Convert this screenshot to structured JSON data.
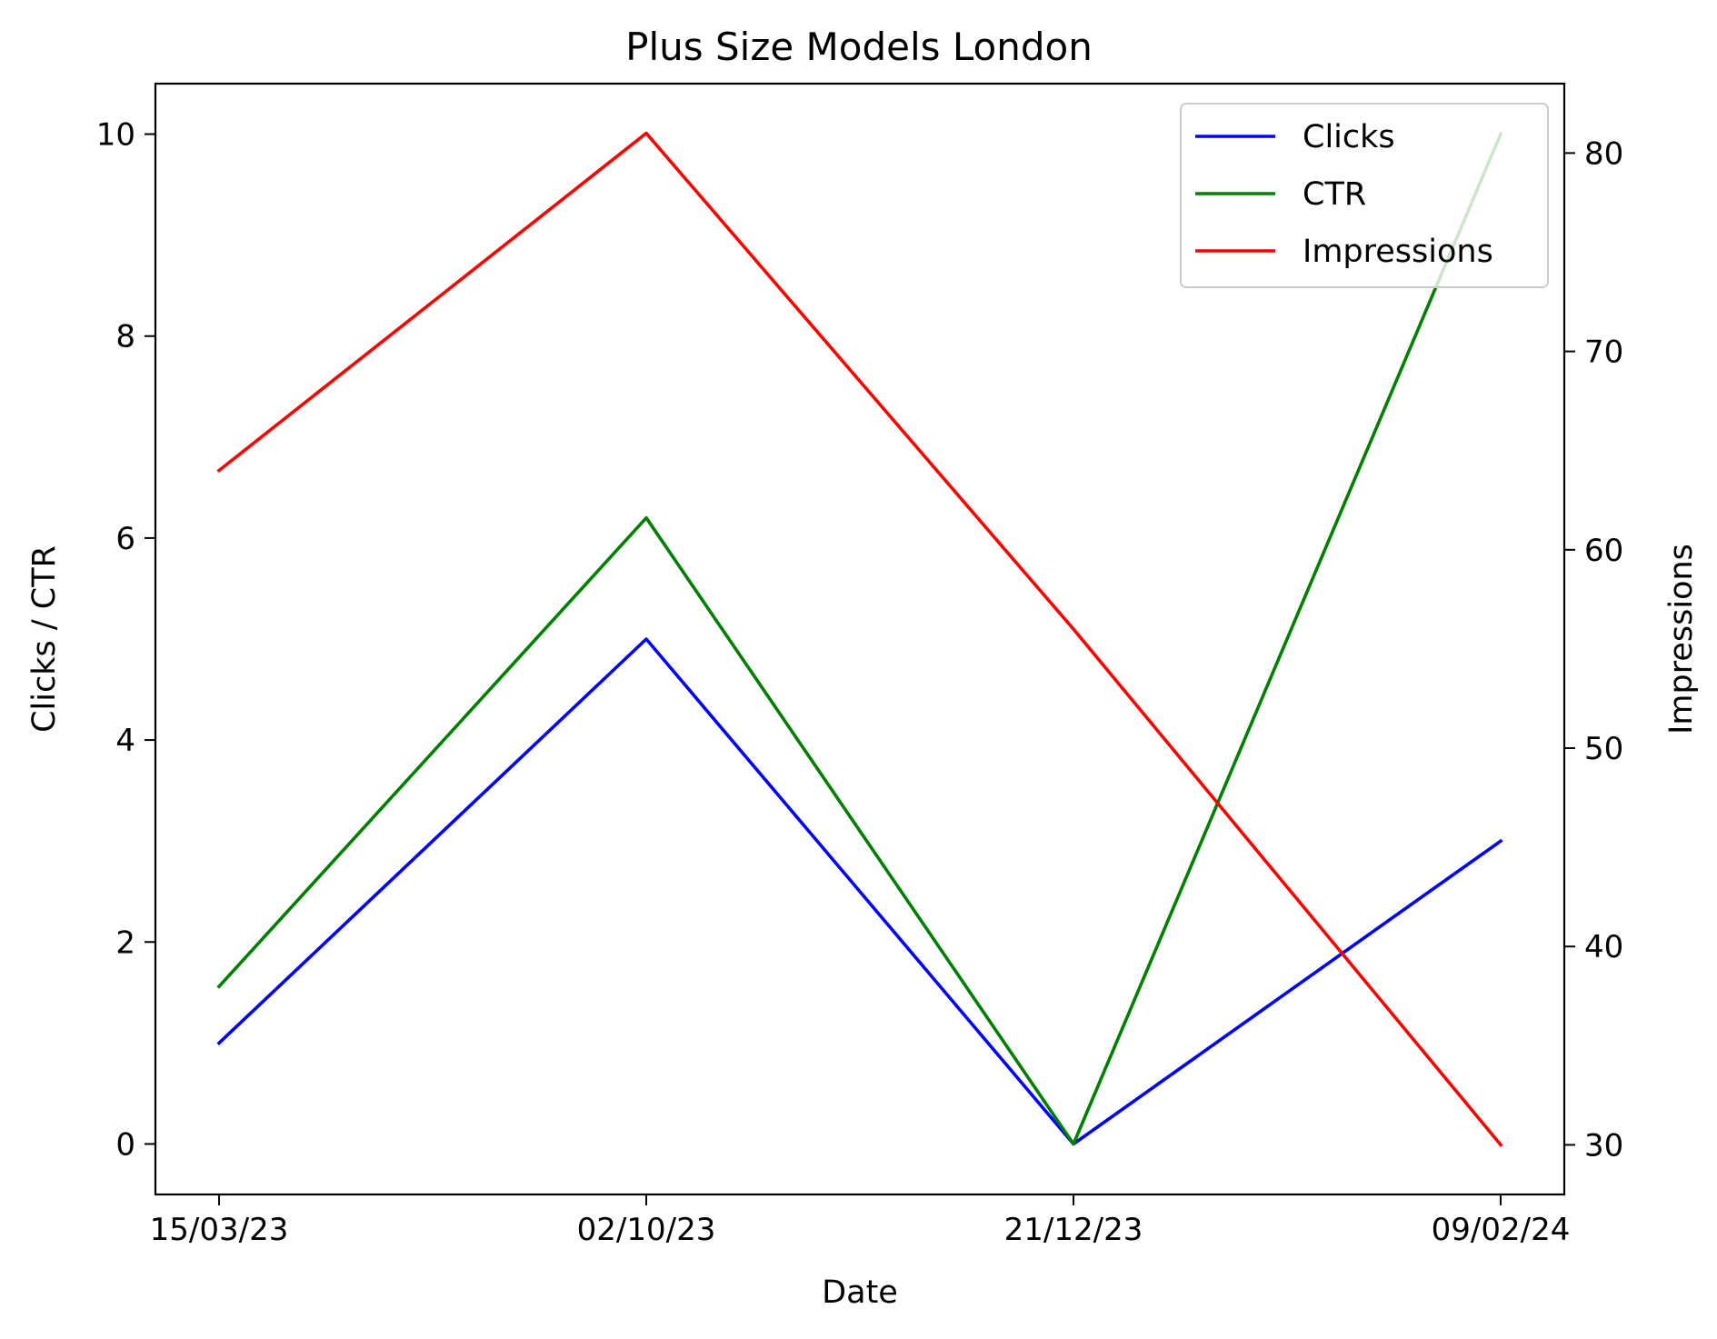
{
  "chart_data": {
    "type": "line",
    "title": "Plus Size Models London",
    "xlabel": "Date",
    "ylabel": "Clicks / CTR",
    "y2label": "Impressions",
    "categories": [
      "15/03/23",
      "02/10/23",
      "21/12/23",
      "09/02/24"
    ],
    "ylim": [
      -0.5,
      10.5
    ],
    "y2lim": [
      27.5,
      83.5
    ],
    "yticks": [
      "0",
      "2",
      "4",
      "6",
      "8",
      "10"
    ],
    "y2ticks": [
      "30",
      "40",
      "50",
      "60",
      "70",
      "80"
    ],
    "grid": false,
    "legend_position": "upper right",
    "series": [
      {
        "name": "Clicks",
        "axis": "left",
        "color": "#0000ff",
        "values": [
          1,
          5,
          0,
          3
        ]
      },
      {
        "name": "CTR",
        "axis": "left",
        "color": "#008000",
        "values": [
          1.56,
          6.2,
          0,
          10
        ]
      },
      {
        "name": "Impressions",
        "axis": "right",
        "color": "#ff0000",
        "values": [
          64,
          81,
          56,
          30
        ]
      }
    ]
  }
}
